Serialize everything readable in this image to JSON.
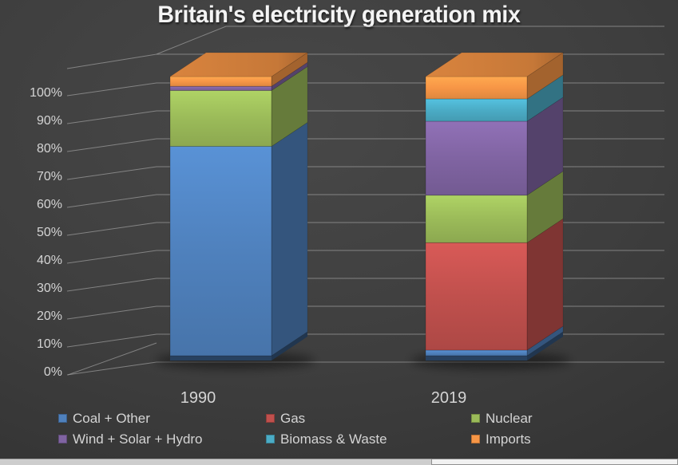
{
  "title": "Britain's electricity generation mix",
  "chart_data": {
    "type": "bar",
    "variant": "3d-stacked-column",
    "title": "Britain's electricity generation mix",
    "categories": [
      "1990",
      "2019"
    ],
    "series": [
      {
        "name": "Coal + Other",
        "color": "#4F81BD",
        "values": [
          75,
          2
        ]
      },
      {
        "name": "Gas",
        "color": "#C0504D",
        "values": [
          0,
          38.5
        ]
      },
      {
        "name": "Nuclear",
        "color": "#9BBB59",
        "values": [
          20,
          17
        ]
      },
      {
        "name": "Wind + Solar + Hydro",
        "color": "#8064A2",
        "values": [
          1.5,
          26.5
        ]
      },
      {
        "name": "Biomass & Waste",
        "color": "#4BACC6",
        "values": [
          0,
          8
        ]
      },
      {
        "name": "Imports",
        "color": "#F79646",
        "values": [
          3.5,
          8
        ]
      }
    ],
    "yticks": [
      "0%",
      "10%",
      "20%",
      "30%",
      "40%",
      "50%",
      "60%",
      "70%",
      "80%",
      "90%",
      "100%"
    ],
    "ylim": [
      0,
      100
    ],
    "xlabel": "",
    "ylabel": "",
    "grid": true,
    "legend_position": "bottom",
    "style": {
      "background": "#3d3d3d",
      "text_color": "#d4d4d4",
      "title_color": "#f4f4f4",
      "grid_color": "#9a9a9a"
    }
  }
}
